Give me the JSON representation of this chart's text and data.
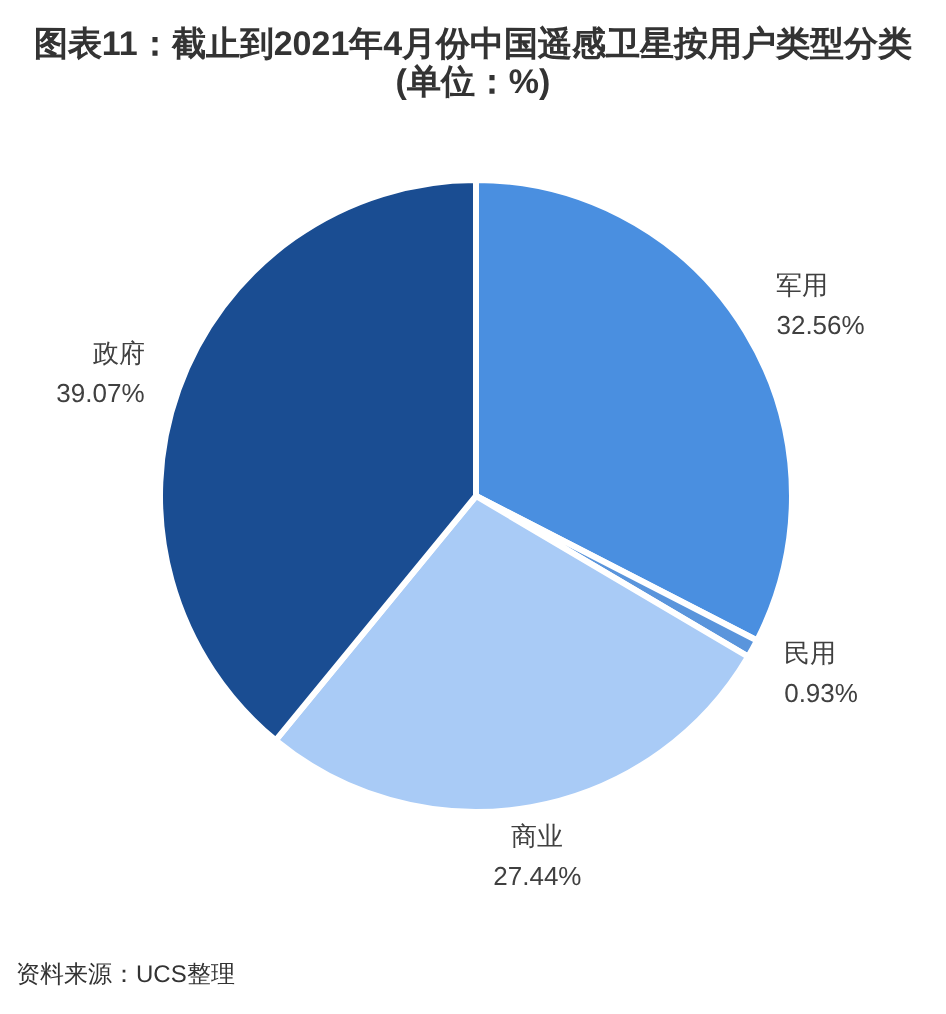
{
  "chart_data": {
    "type": "pie",
    "title": "图表11：截止到2021年4月份中国遥感卫星按用户类型分类(单位：%)",
    "categories": [
      "军用",
      "民用",
      "商业",
      "政府"
    ],
    "values": [
      32.56,
      0.93,
      27.44,
      39.07
    ],
    "colors": [
      "#4a8fe0",
      "#5a95dc",
      "#a9cbf6",
      "#1a4d92"
    ],
    "value_labels": [
      "32.56%",
      "0.93%",
      "27.44%",
      "39.07%"
    ],
    "annotations": [
      "资料来源：UCS整理"
    ]
  }
}
